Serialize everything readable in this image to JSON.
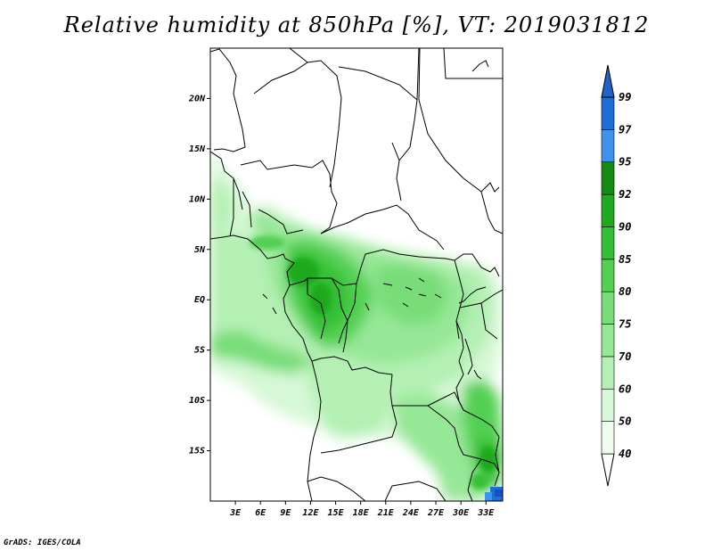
{
  "title": "Relative humidity at 850hPa [%], VT: 2019031812",
  "credit": "GrADS: IGES/COLA",
  "map": {
    "projection": "lat-lon",
    "lon_range": [
      0,
      35
    ],
    "lat_range": [
      -20,
      25
    ],
    "lon_ticks": [
      {
        "lon": 3,
        "label": "3E"
      },
      {
        "lon": 6,
        "label": "6E"
      },
      {
        "lon": 9,
        "label": "9E"
      },
      {
        "lon": 12,
        "label": "12E"
      },
      {
        "lon": 15,
        "label": "15E"
      },
      {
        "lon": 18,
        "label": "18E"
      },
      {
        "lon": 21,
        "label": "21E"
      },
      {
        "lon": 24,
        "label": "24E"
      },
      {
        "lon": 27,
        "label": "27E"
      },
      {
        "lon": 30,
        "label": "30E"
      },
      {
        "lon": 33,
        "label": "33E"
      }
    ],
    "lat_ticks": [
      {
        "lat": 20,
        "label": "20N"
      },
      {
        "lat": 15,
        "label": "15N"
      },
      {
        "lat": 10,
        "label": "10N"
      },
      {
        "lat": 5,
        "label": "5N"
      },
      {
        "lat": 0,
        "label": "EQ"
      },
      {
        "lat": -5,
        "label": "5S"
      },
      {
        "lat": -10,
        "label": "10S"
      },
      {
        "lat": -15,
        "label": "15S"
      }
    ]
  },
  "colorbar": {
    "levels": [
      "40",
      "50",
      "60",
      "70",
      "75",
      "80",
      "85",
      "90",
      "92",
      "95",
      "97",
      "99"
    ],
    "colors": [
      "#eefdee",
      "#d6f8d6",
      "#b4f0b4",
      "#96e796",
      "#78dd78",
      "#52d052",
      "#34c034",
      "#1eaa1e",
      "#138c13",
      "#3d94ee",
      "#1c6ed8",
      "#1451c0"
    ],
    "low_color": "#ffffff",
    "high_color": "#1f63c8"
  },
  "chart_data": {
    "type": "heatmap",
    "field": "Relative humidity at 850hPa",
    "units": "%",
    "valid_time": "2019031812",
    "lon_range": [
      0,
      35
    ],
    "lat_range": [
      -20,
      25
    ],
    "contour_levels": [
      40,
      50,
      60,
      70,
      75,
      80,
      85,
      90,
      92,
      95,
      97,
      99
    ],
    "regions": [
      {
        "lon": [
          0.5,
          5
        ],
        "lat": [
          6,
          15
        ],
        "value": 60
      },
      {
        "lon": [
          2,
          9
        ],
        "lat": [
          4,
          10
        ],
        "value": 75
      },
      {
        "lon": [
          0,
          8
        ],
        "lat": [
          -6,
          4
        ],
        "value": 55
      },
      {
        "lon": [
          0,
          12
        ],
        "lat": [
          -7,
          -3
        ],
        "value": 80
      },
      {
        "lon": [
          9,
          18
        ],
        "lat": [
          -6,
          6
        ],
        "value": 85
      },
      {
        "lon": [
          11,
          15
        ],
        "lat": [
          2,
          6
        ],
        "value": 90
      },
      {
        "lon": [
          18,
          30
        ],
        "lat": [
          -6,
          5
        ],
        "value": 78
      },
      {
        "lon": [
          12,
          24
        ],
        "lat": [
          -14,
          -5
        ],
        "value": 70
      },
      {
        "lon": [
          23,
          33
        ],
        "lat": [
          -15,
          -7
        ],
        "value": 75
      },
      {
        "lon": [
          29,
          35
        ],
        "lat": [
          -18,
          -8
        ],
        "value": 85
      },
      {
        "lon": [
          32,
          35
        ],
        "lat": [
          -20,
          -18
        ],
        "value": 97
      }
    ]
  }
}
